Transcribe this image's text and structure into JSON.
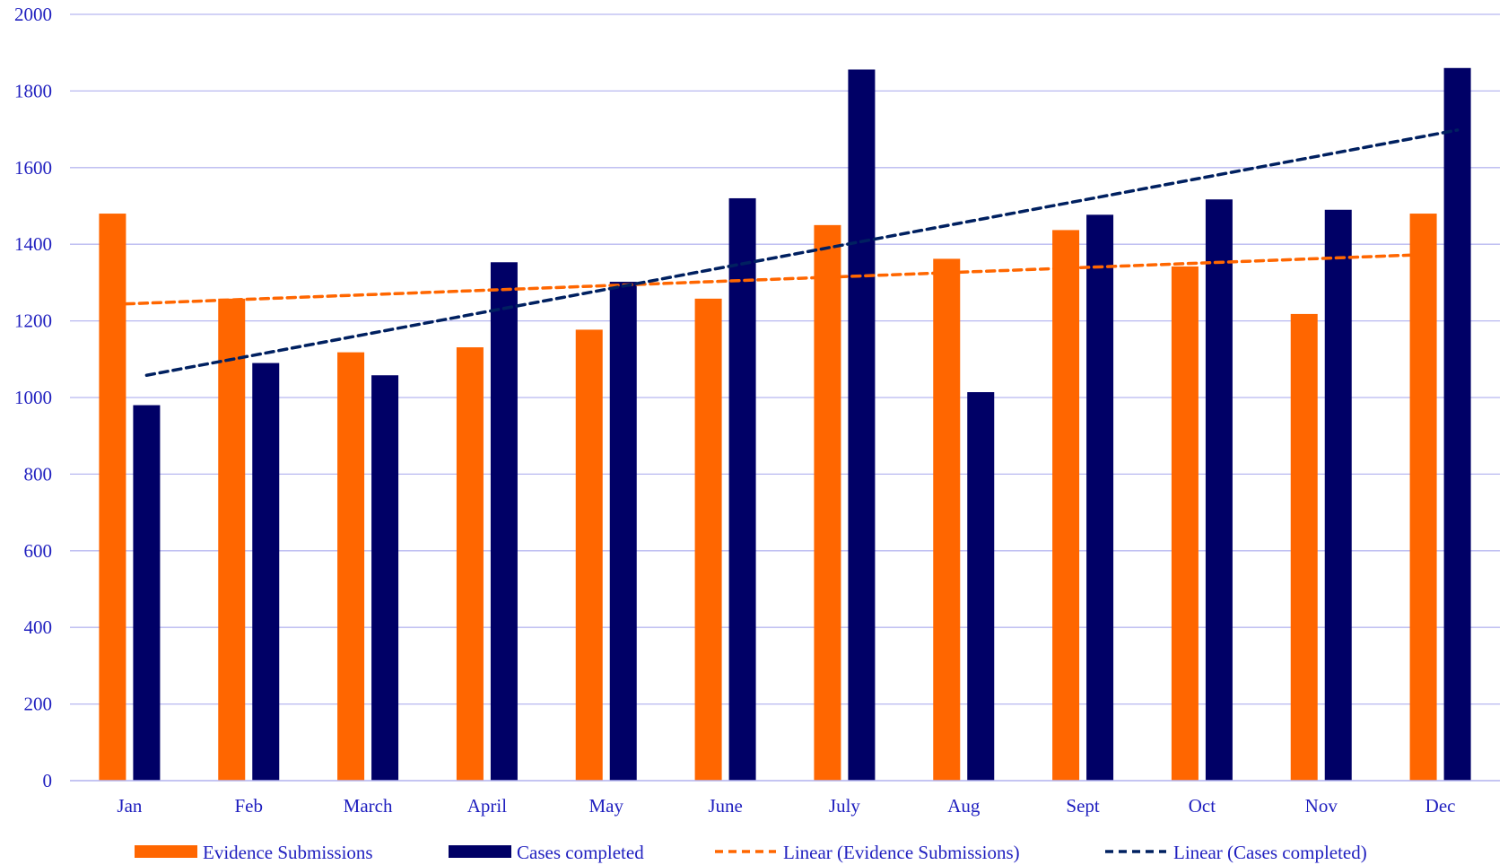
{
  "chart_data": {
    "type": "bar",
    "categories": [
      "Jan",
      "Feb",
      "March",
      "April",
      "May",
      "June",
      "July",
      "Aug",
      "Sept",
      "Oct",
      "Nov",
      "Dec"
    ],
    "series": [
      {
        "name": "Evidence Submissions",
        "color": "#ff6600",
        "values": [
          1480,
          1258,
          1118,
          1131,
          1177,
          1258,
          1450,
          1362,
          1437,
          1342,
          1218,
          1480
        ]
      },
      {
        "name": "Cases completed",
        "color": "#000066",
        "values": [
          980,
          1090,
          1058,
          1353,
          1302,
          1520,
          1856,
          1014,
          1477,
          1517,
          1490,
          1860
        ]
      }
    ],
    "trendlines": [
      {
        "name": "Linear (Evidence Submissions)",
        "series": "Evidence Submissions",
        "color": "#ff6600",
        "start": 1243,
        "end": 1373
      },
      {
        "name": "Linear (Cases completed)",
        "series": "Cases completed",
        "color": "#002060",
        "start": 1058,
        "end": 1698
      }
    ],
    "ylim": [
      0,
      2000
    ],
    "yticks": [
      0,
      200,
      400,
      600,
      800,
      1000,
      1200,
      1400,
      1600,
      1800,
      2000
    ],
    "grid": true,
    "legend_position": "bottom",
    "gridline_color": "#b8b8f0",
    "axis_text_color": "#1f1fbf"
  }
}
